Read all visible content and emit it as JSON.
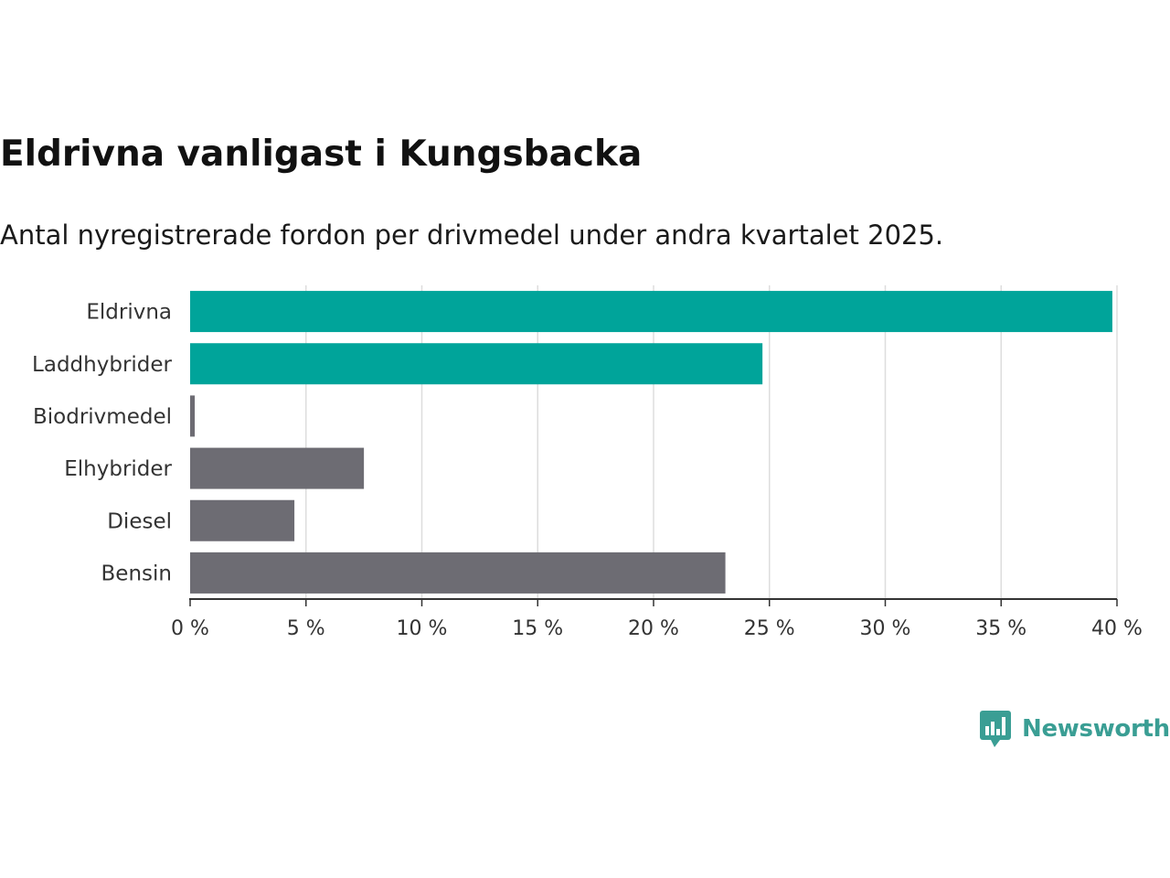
{
  "chart_data": {
    "type": "bar",
    "orientation": "horizontal",
    "title": "Eldrivna vanligast i Kungsbacka",
    "subtitle": "Antal nyregistrerade fordon per drivmedel under andra kvartalet 2025.",
    "categories": [
      "Eldrivna",
      "Laddhybrider",
      "Biodrivmedel",
      "Elhybrider",
      "Diesel",
      "Bensin"
    ],
    "values": [
      39.8,
      24.7,
      0.2,
      7.5,
      4.5,
      23.1
    ],
    "unit": "%",
    "xlim": [
      0,
      40
    ],
    "xticks": [
      0,
      5,
      10,
      15,
      20,
      25,
      30,
      35,
      40
    ],
    "xtick_labels": [
      "0 %",
      "5 %",
      "10 %",
      "15 %",
      "20 %",
      "25 %",
      "30 %",
      "35 %",
      "40 %"
    ],
    "bar_colors": [
      "#00a49a",
      "#00a49a",
      "#6d6c73",
      "#6d6c73",
      "#6d6c73",
      "#6d6c73"
    ],
    "grid": "vertical",
    "legend": "none"
  },
  "brand": {
    "name": "Newsworthy",
    "color": "#3a9e94",
    "icon": "bar-chart-speech-bubble-icon"
  }
}
